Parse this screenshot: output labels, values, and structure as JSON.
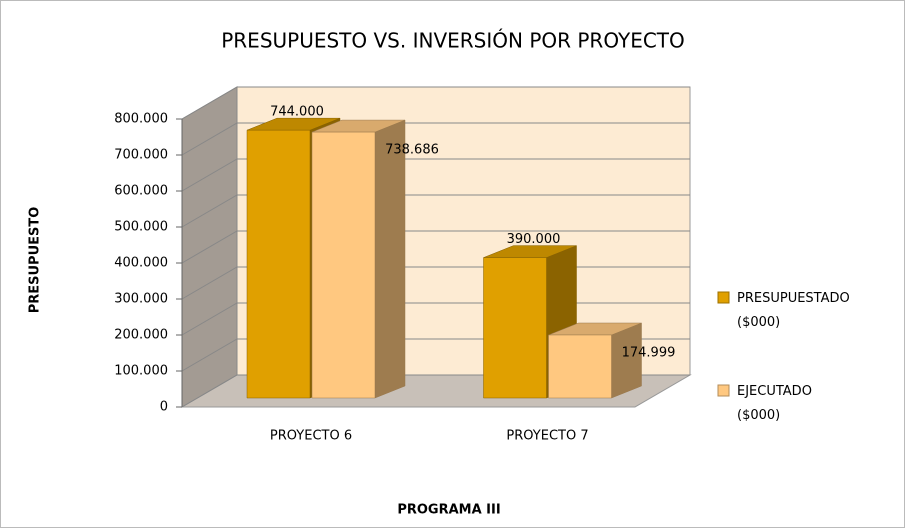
{
  "chart_data": {
    "type": "bar3d",
    "title": "PRESUPUESTO VS. INVERSIÓN POR PROYECTO",
    "x_label": "PROGRAMA III",
    "y_label": "PRESUPUESTO",
    "categories": [
      "PROYECTO 6",
      "PROYECTO 7"
    ],
    "series": [
      {
        "name": "PRESUPUESTADO ($000)",
        "color": "#e0a000",
        "values": [
          744000,
          390000
        ],
        "value_labels": [
          "744.000",
          "390.000"
        ]
      },
      {
        "name": "EJECUTADO ($000)",
        "color": "#ffc880",
        "values": [
          738686,
          174999
        ],
        "value_labels": [
          "738.686",
          "174.999"
        ]
      }
    ],
    "ylim": [
      0,
      800000
    ],
    "yticks": [
      0,
      {
        "value": 100000,
        "label": "100.000"
      },
      {
        "value": 200000,
        "label": "200.000"
      },
      {
        "value": 300000,
        "label": "300.000"
      },
      {
        "value": 400000,
        "label": "400.000"
      },
      {
        "value": 500000,
        "label": "500.000"
      },
      {
        "value": 600000,
        "label": "600.000"
      },
      {
        "value": 700000,
        "label": "700.000"
      },
      {
        "value": 800000,
        "label": "800.000"
      }
    ],
    "grid": true,
    "legend": "right"
  }
}
